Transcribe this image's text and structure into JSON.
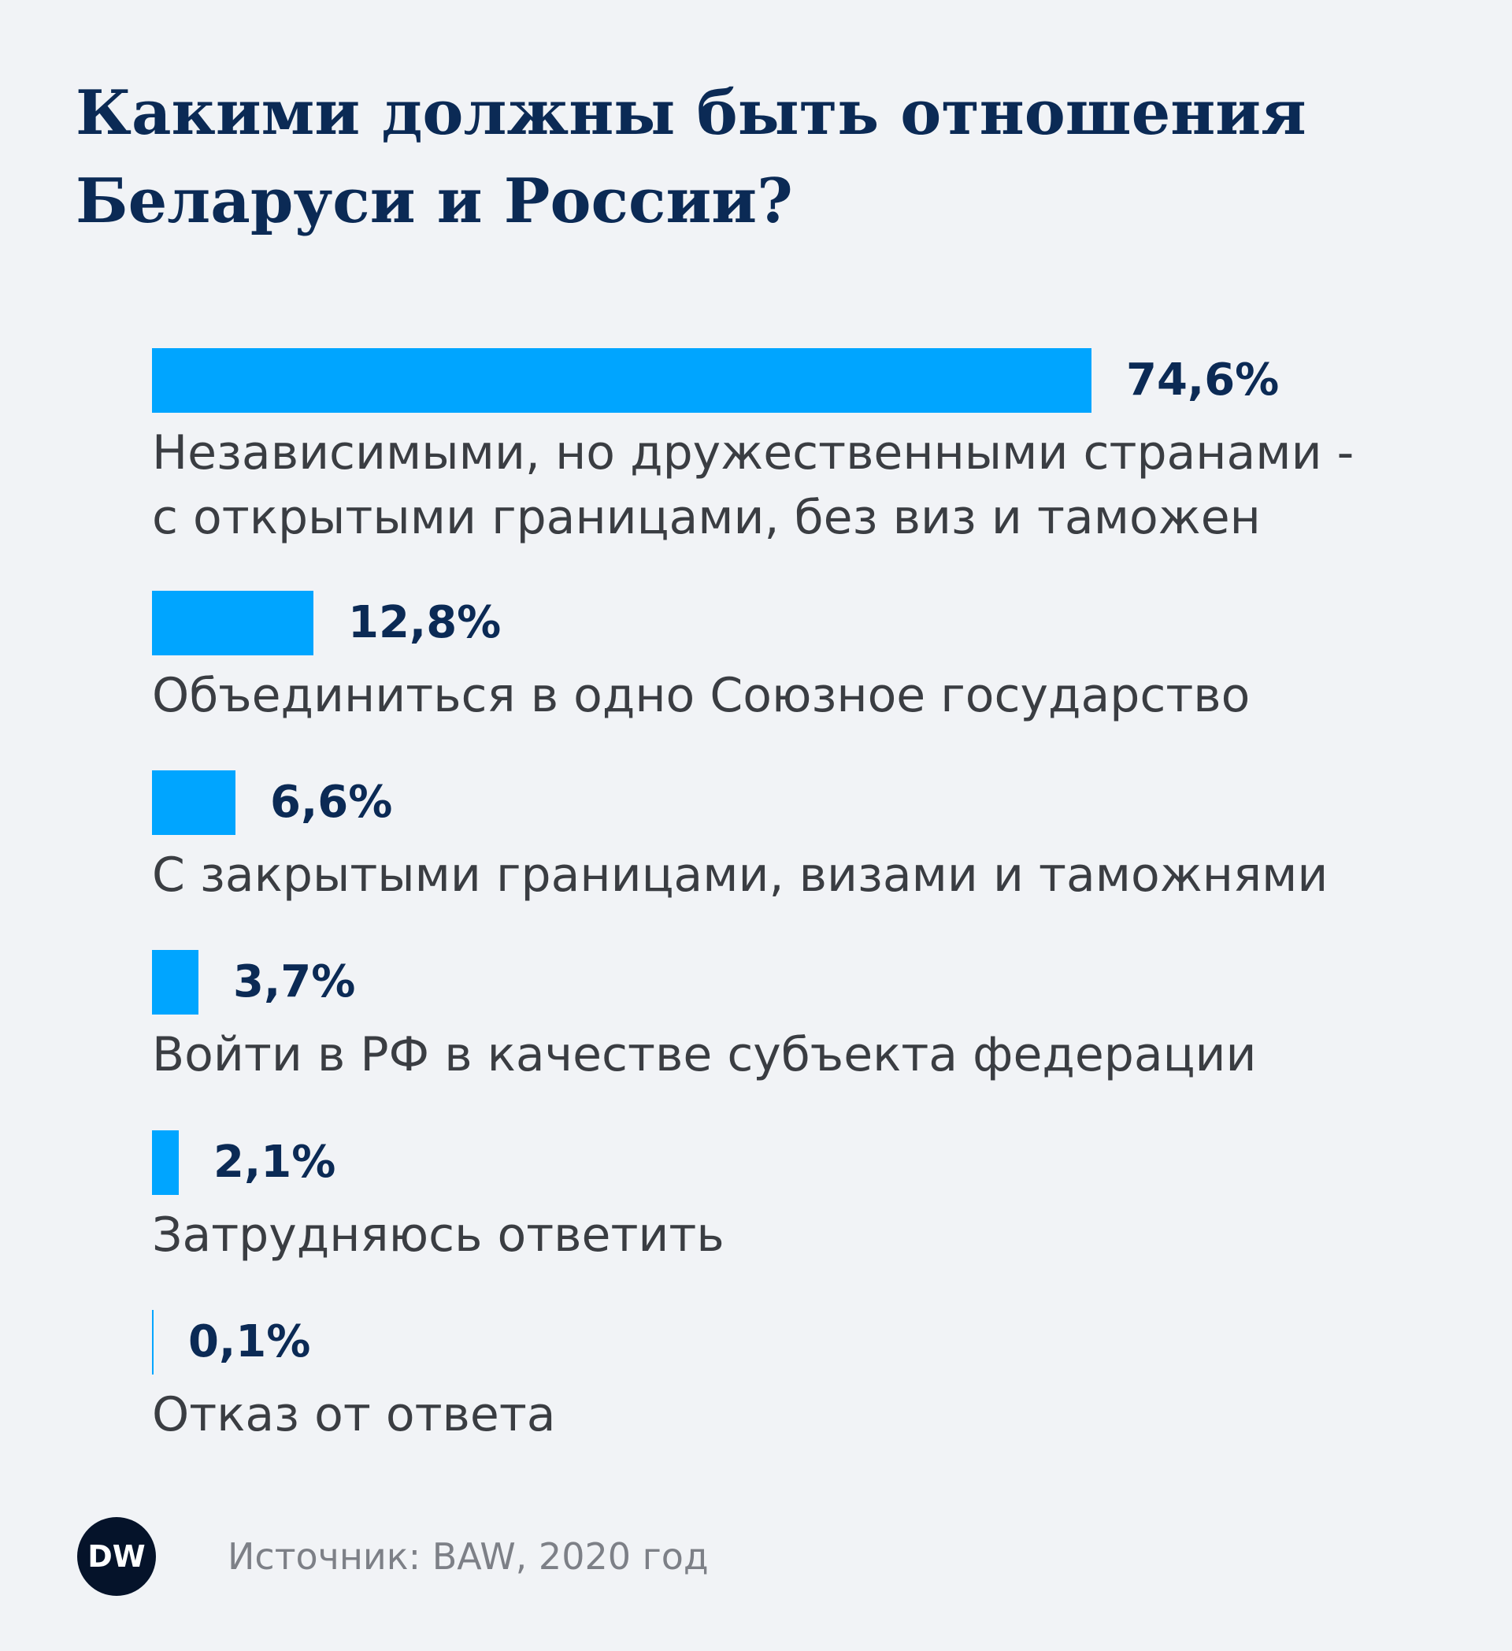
{
  "title": "Какими должны быть отношения\nБеларуси и России?",
  "source": "Источник: BAW, 2020 год",
  "logo": {
    "text": "DW",
    "icon": "dw-logo"
  },
  "colors": {
    "bar": "#00a5ff",
    "title": "#0b2a55",
    "value": "#0b2a55",
    "label": "#3a3d42",
    "background": "#f1f3f6"
  },
  "chart_data": {
    "type": "bar",
    "orientation": "horizontal",
    "title": "Какими должны быть отношения Беларуси и России?",
    "xlim": [
      0,
      100
    ],
    "grid": false,
    "categories": [
      "Независимыми, но дружественными странами -\nс открытыми границами, без виз и таможен",
      "Объединиться в одно Союзное государство",
      "С закрытыми границами, визами и таможнями",
      "Войти в РФ в качестве субъекта федерации",
      "Затрудняюсь ответить",
      "Отказ от ответа"
    ],
    "values": [
      74.6,
      12.8,
      6.6,
      3.7,
      2.1,
      0.1
    ],
    "value_labels": [
      "74,6%",
      "12,8%",
      "6,6%",
      "3,7%",
      "2,1%",
      "0,1%"
    ]
  }
}
